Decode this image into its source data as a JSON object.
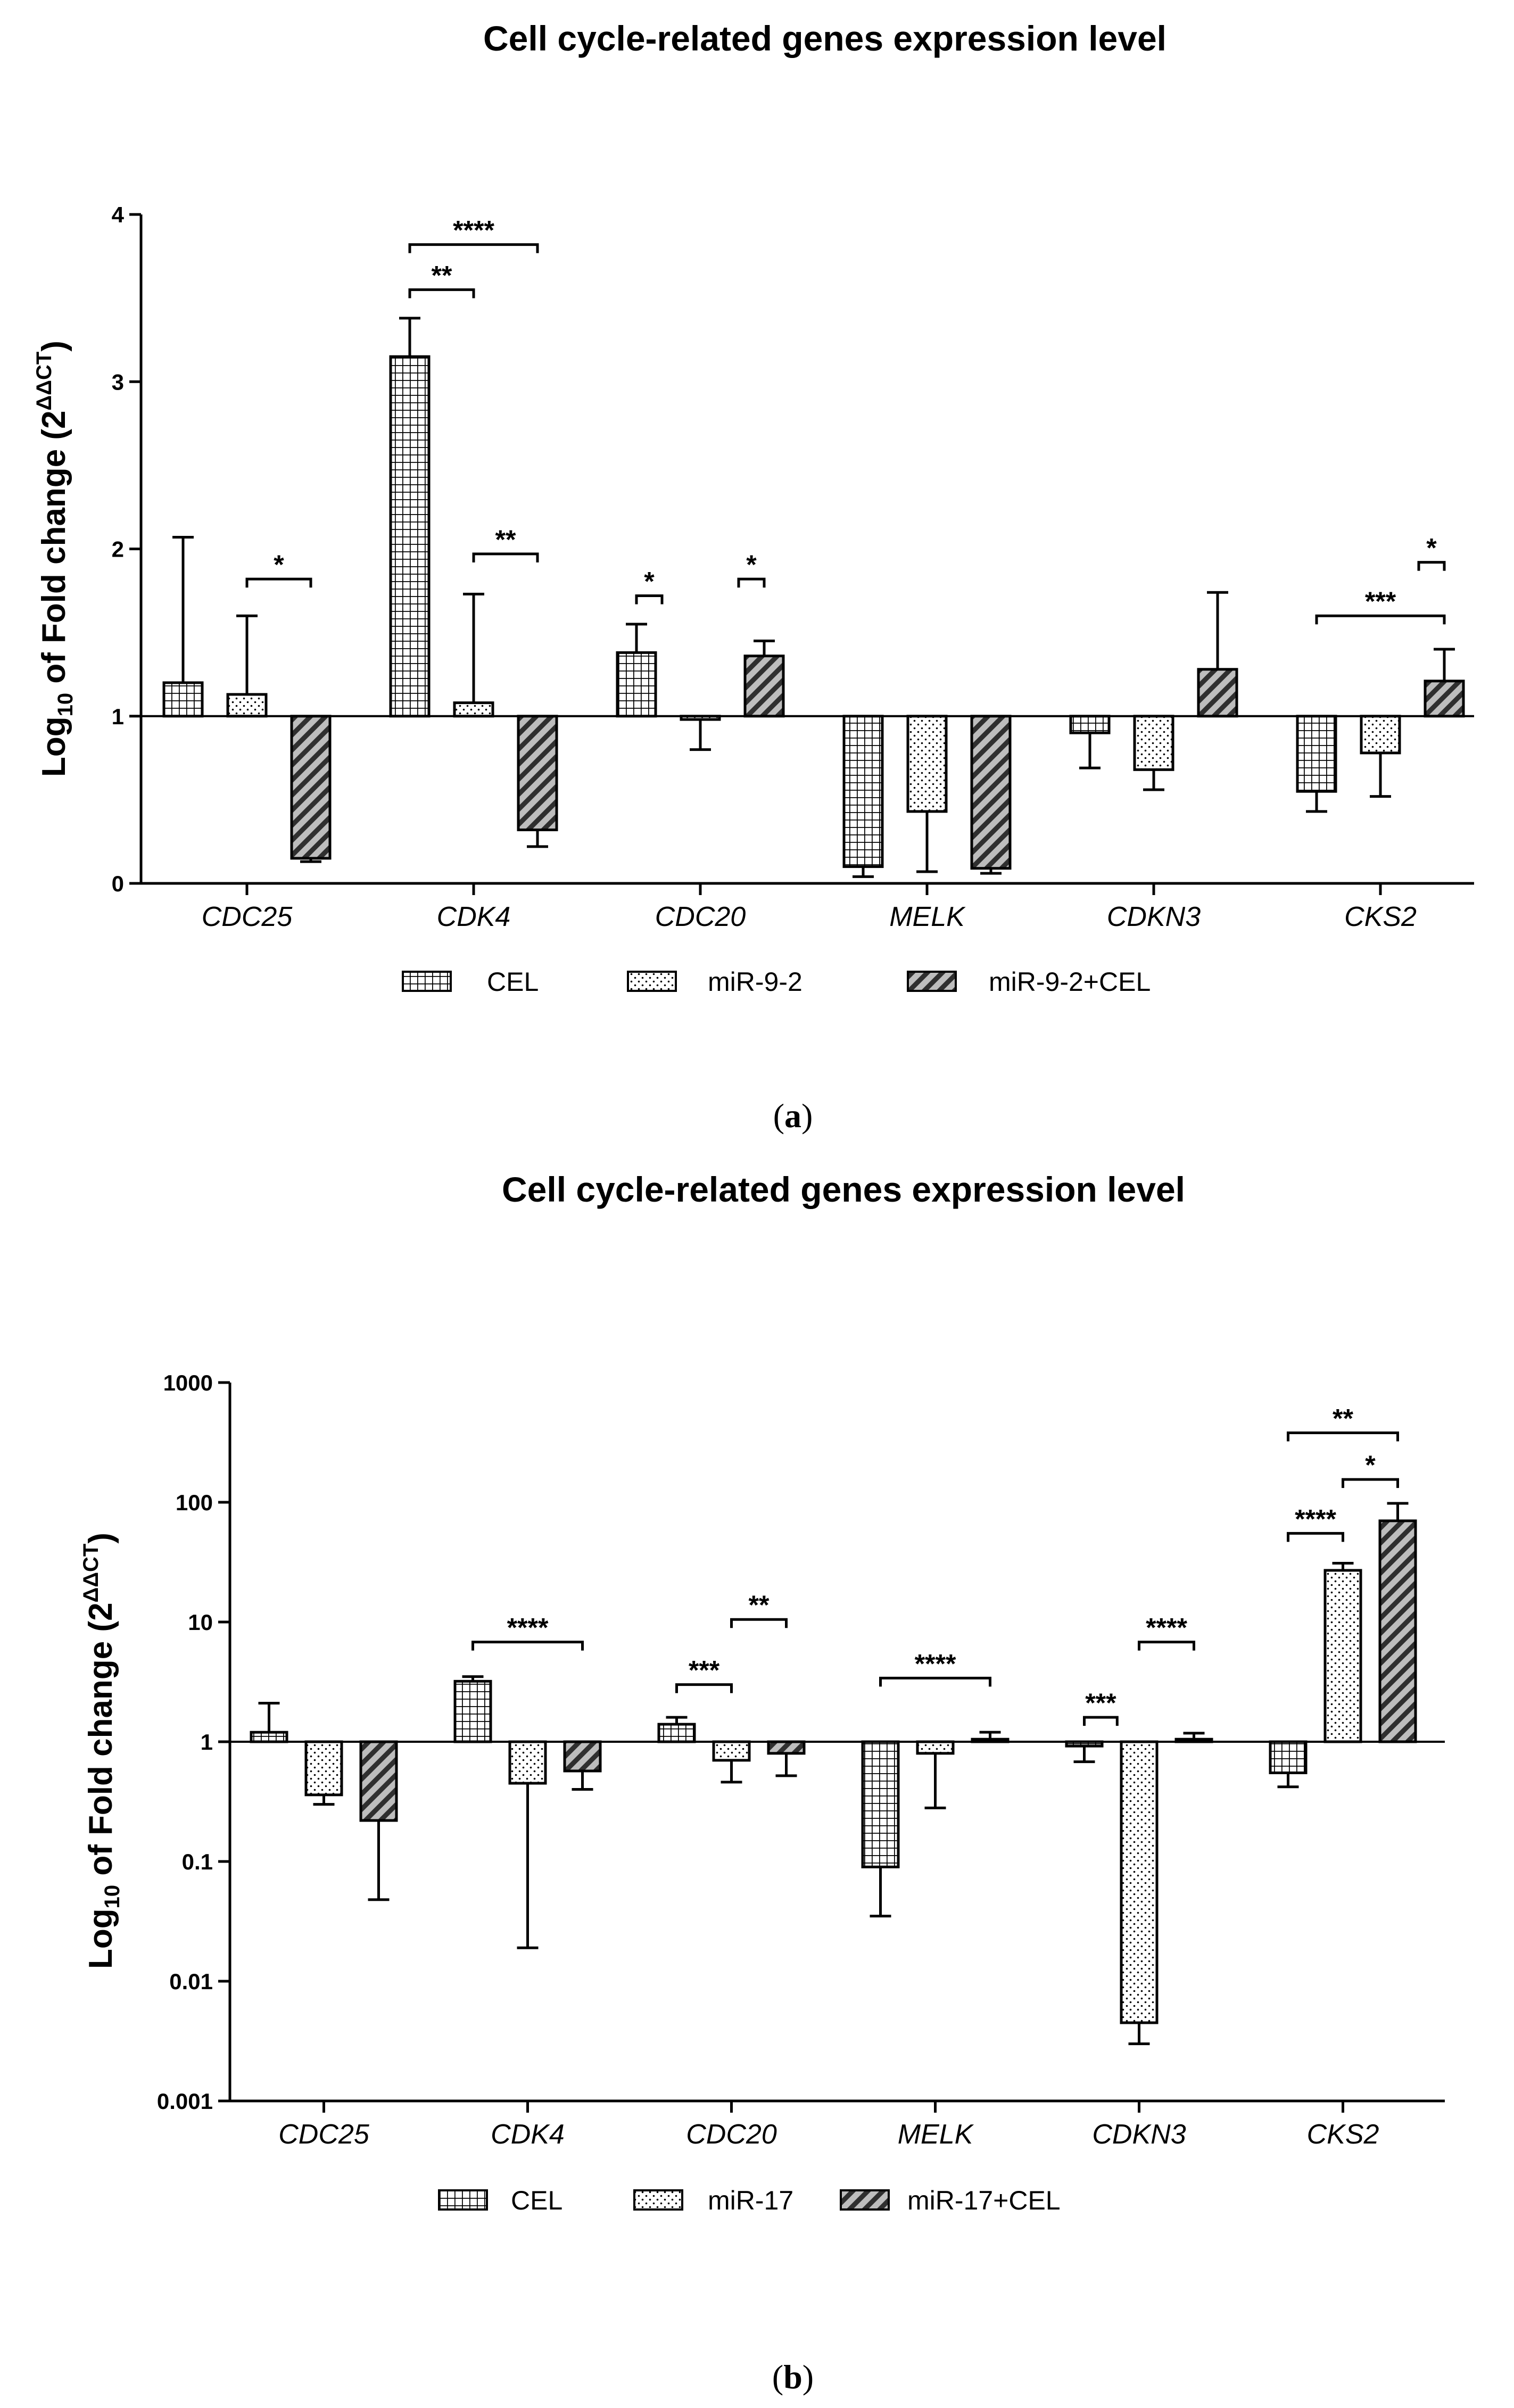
{
  "chart_data": [
    {
      "type": "bar",
      "panel_label": "a",
      "title": "Cell cycle-related genes expression level",
      "ylabel": "Log10 of Fold change (2^ΔΔCT)",
      "ylabel_main": "Log",
      "ylabel_sub": "10",
      "ylabel_rest": " of Fold change (2",
      "ylabel_sup": "ΔΔCT",
      "ylabel_close": ")",
      "yscale": "linear",
      "baseline": 1,
      "ylim": [
        0,
        4
      ],
      "yticks": [
        "0",
        "1",
        "2",
        "3",
        "4"
      ],
      "categories": [
        "CDC25",
        "CDK4",
        "CDC20",
        "MELK",
        "CDKN3",
        "CKS2"
      ],
      "series": [
        {
          "name": "CEL",
          "values": [
            1.2,
            3.15,
            1.38,
            0.1,
            0.9,
            0.55
          ],
          "err": [
            2.07,
            3.38,
            1.55,
            0.04,
            0.69,
            0.43
          ]
        },
        {
          "name": "miR-9-2",
          "values": [
            1.13,
            1.08,
            0.98,
            0.43,
            0.68,
            0.78
          ],
          "err": [
            1.6,
            1.73,
            0.8,
            0.07,
            0.56,
            0.52
          ]
        },
        {
          "name": "miR-9-2+CEL",
          "values": [
            0.15,
            0.32,
            1.36,
            0.09,
            1.28,
            1.21
          ],
          "err": [
            0.13,
            0.22,
            1.45,
            0.06,
            1.74,
            1.4
          ]
        }
      ],
      "significance": [
        {
          "label": "*",
          "category": 0,
          "from": 1,
          "to": 2,
          "y": 1.82
        },
        {
          "label": "**",
          "category": 1,
          "from": 0,
          "to": 1,
          "y": 3.55
        },
        {
          "label": "****",
          "category": 1,
          "from": 0,
          "to": 2,
          "y": 3.82
        },
        {
          "label": "**",
          "category": 1,
          "from": 1,
          "to": 2,
          "y": 1.97
        },
        {
          "label": "*",
          "category": 2,
          "from": 0,
          "to": 0.4,
          "y": 1.72
        },
        {
          "label": "*",
          "category": 2,
          "from": 1.6,
          "to": 2,
          "y": 1.82
        },
        {
          "label": "***",
          "category": 5,
          "from": 0,
          "to": 2,
          "y": 1.6
        },
        {
          "label": "*",
          "category": 5,
          "from": 1.6,
          "to": 2,
          "y": 1.92
        }
      ]
    },
    {
      "type": "bar",
      "panel_label": "b",
      "title": "Cell cycle-related genes expression level",
      "ylabel": "Log10 of Fold change (2^ΔΔCT)",
      "ylabel_main": "Log",
      "ylabel_sub": "10",
      "ylabel_rest": " of Fold change (2",
      "ylabel_sup": "ΔΔCT",
      "ylabel_close": ")",
      "yscale": "log",
      "baseline": 1,
      "ylim": [
        0.001,
        1000
      ],
      "yticks": [
        "0.001",
        "0.01",
        "0.1",
        "1",
        "10",
        "100",
        "1000"
      ],
      "categories": [
        "CDC25",
        "CDK4",
        "CDC20",
        "MELK",
        "CDKN3",
        "CKS2"
      ],
      "series": [
        {
          "name": "CEL",
          "values": [
            1.2,
            3.2,
            1.4,
            0.09,
            0.92,
            0.55
          ],
          "err": [
            2.1,
            3.5,
            1.6,
            0.035,
            0.68,
            0.42
          ]
        },
        {
          "name": "miR-17",
          "values": [
            0.36,
            0.45,
            0.7,
            0.8,
            0.0045,
            27
          ],
          "err": [
            0.3,
            0.019,
            0.46,
            0.28,
            0.003,
            31
          ]
        },
        {
          "name": "miR-17+CEL",
          "values": [
            0.22,
            0.57,
            0.8,
            1.05,
            1.05,
            70
          ],
          "err": [
            0.048,
            0.4,
            0.52,
            1.2,
            1.18,
            98
          ]
        }
      ],
      "significance": [
        {
          "label": "****",
          "category": 1,
          "from": 0,
          "to": 2,
          "y": 6.8
        },
        {
          "label": "***",
          "category": 2,
          "from": 0,
          "to": 1,
          "y": 3.0
        },
        {
          "label": "**",
          "category": 2,
          "from": 1,
          "to": 2,
          "y": 10.5
        },
        {
          "label": "****",
          "category": 3,
          "from": 0,
          "to": 2,
          "y": 3.4
        },
        {
          "label": "***",
          "category": 4,
          "from": 0,
          "to": 0.6,
          "y": 1.6
        },
        {
          "label": "****",
          "category": 4,
          "from": 1,
          "to": 2,
          "y": 6.8
        },
        {
          "label": "****",
          "category": 5,
          "from": 0,
          "to": 1,
          "y": 55
        },
        {
          "label": "*",
          "category": 5,
          "from": 1,
          "to": 2,
          "y": 155
        },
        {
          "label": "**",
          "category": 5,
          "from": 0,
          "to": 2,
          "y": 380
        }
      ]
    }
  ]
}
